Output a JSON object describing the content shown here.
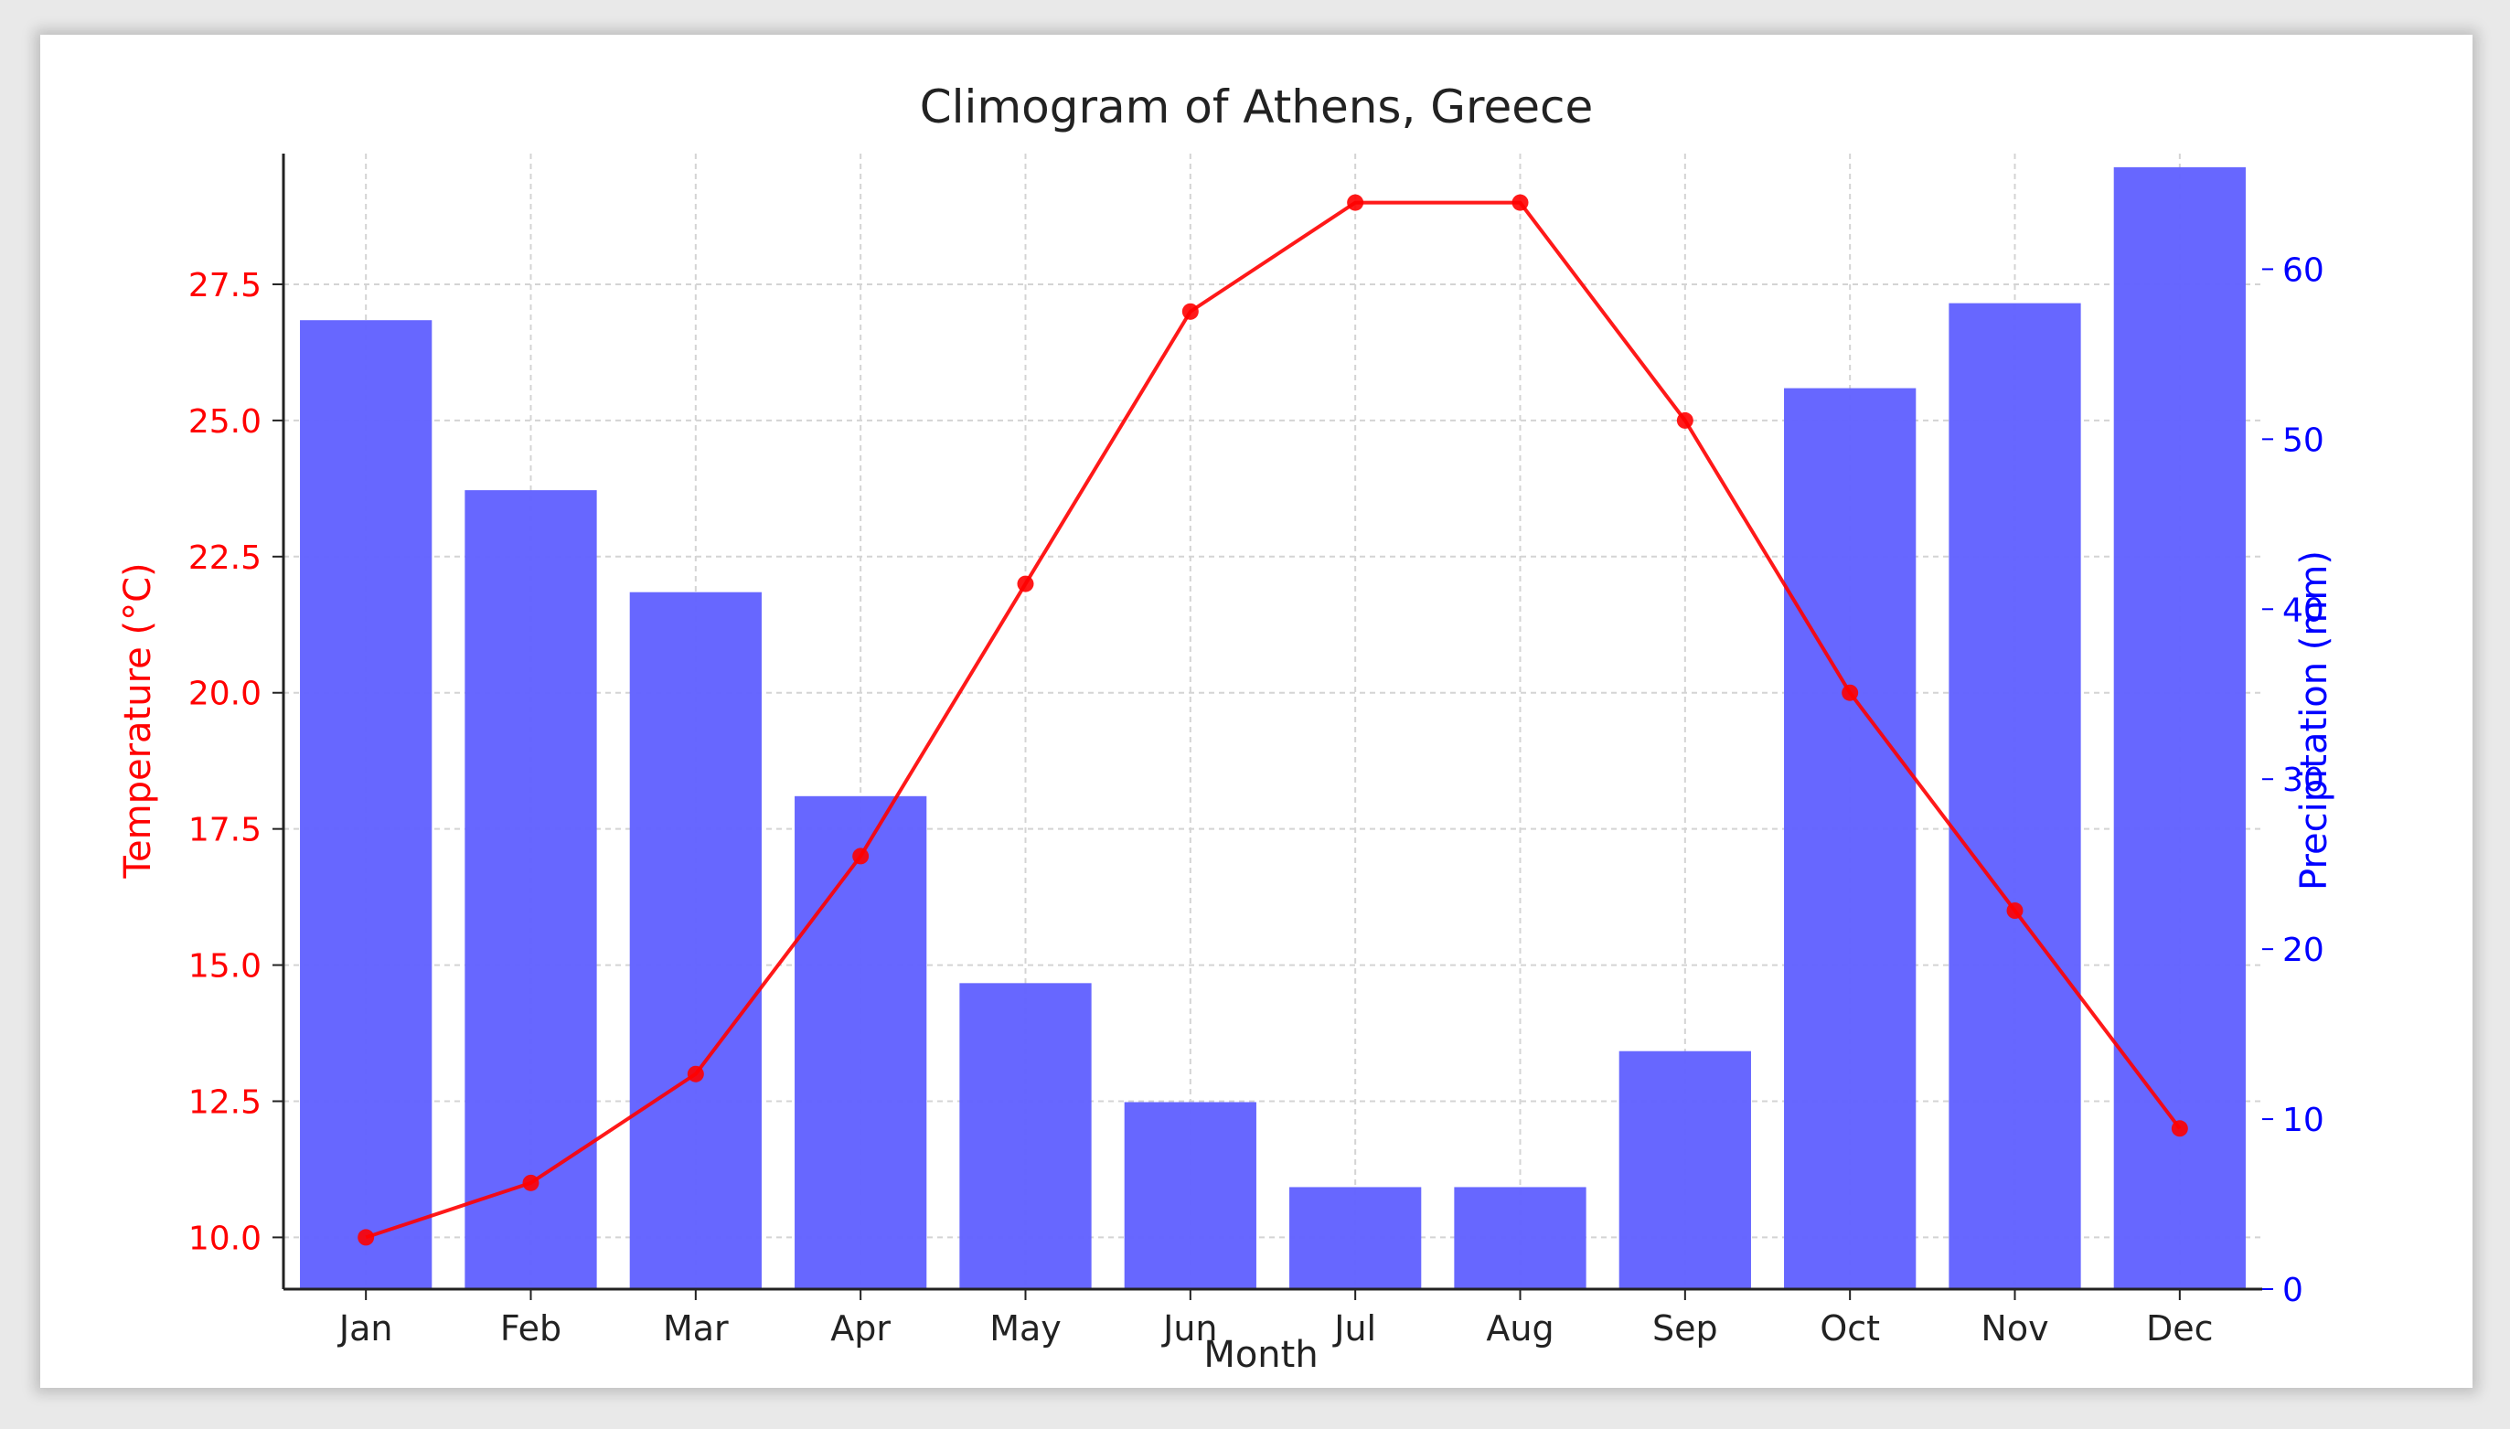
{
  "chart_data": {
    "type": "bar+line",
    "title": "Climogram of Athens, Greece",
    "xlabel": "Month",
    "ylabel_left": "Temperature (°C)",
    "ylabel_right": "Precipitation (mm)",
    "categories": [
      "Jan",
      "Feb",
      "Mar",
      "Apr",
      "May",
      "Jun",
      "Jul",
      "Aug",
      "Sep",
      "Oct",
      "Nov",
      "Dec"
    ],
    "series": [
      {
        "name": "Temperature (°C)",
        "type": "line",
        "axis": "left",
        "color": "#ff0000",
        "values": [
          10,
          11,
          13,
          17,
          22,
          27,
          29,
          29,
          25,
          20,
          16,
          12
        ]
      },
      {
        "name": "Precipitation (mm)",
        "type": "bar",
        "axis": "right",
        "color": "#6262ff",
        "values": [
          57,
          47,
          41,
          29,
          18,
          11,
          6,
          6,
          14,
          53,
          58,
          66
        ]
      }
    ],
    "ylim_left": [
      9.05,
      29.9
    ],
    "ylim_right": [
      0,
      66.8
    ],
    "left_ticks": [
      "10.0",
      "12.5",
      "15.0",
      "17.5",
      "20.0",
      "22.5",
      "25.0",
      "27.5"
    ],
    "right_ticks": [
      "0",
      "10",
      "20",
      "30",
      "40",
      "50",
      "60"
    ],
    "grid": true,
    "left_axis_color": "#ff0000",
    "right_axis_color": "#0000ff"
  }
}
